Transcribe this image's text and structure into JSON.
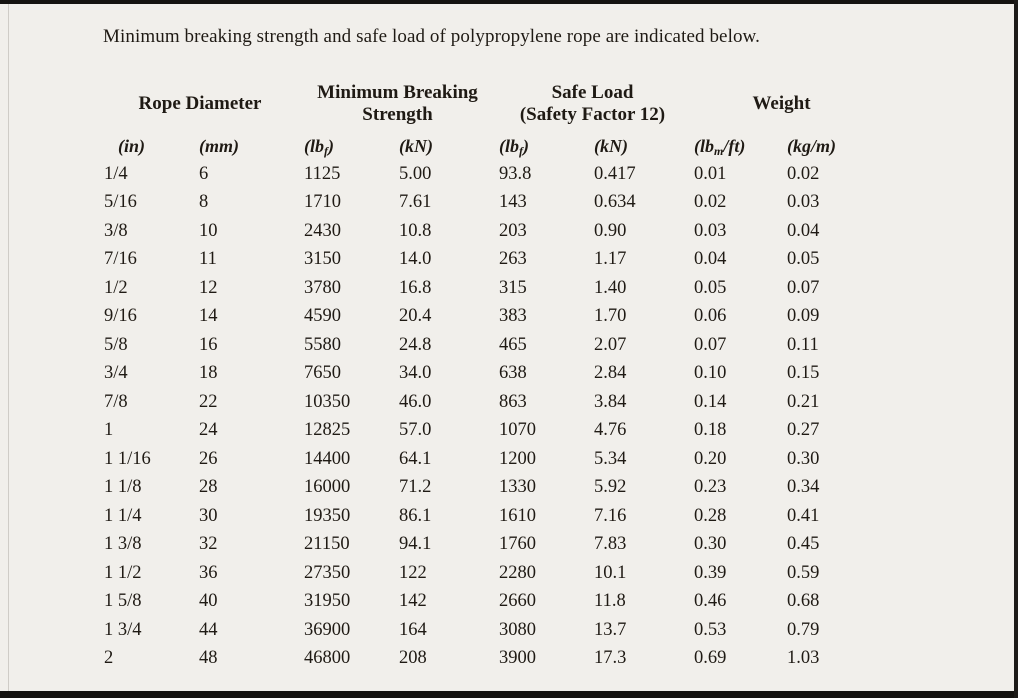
{
  "page": {
    "title": "Minimum breaking strength and safe load of polypropylene rope are indicated below."
  },
  "colors": {
    "background": "#f1efeb",
    "text": "#1f1a14",
    "frame": "#151310",
    "left_edge_line": "#cfccc7"
  },
  "table": {
    "groups": [
      {
        "label": "Rope Diameter"
      },
      {
        "label": "Minimum Breaking\nStrength"
      },
      {
        "label": "Safe Load\n(Safety Factor 12)"
      },
      {
        "label": "Weight"
      }
    ],
    "units": [
      {
        "text": "(in)"
      },
      {
        "text": "(mm)"
      },
      {
        "pre": "(lb",
        "sub": "f",
        "post": ")"
      },
      {
        "text": "(kN)"
      },
      {
        "pre": "(lb",
        "sub": "f",
        "post": ")"
      },
      {
        "text": "(kN)"
      },
      {
        "pre": "(lb",
        "sub": "m",
        "post": "/ft)"
      },
      {
        "text": "(kg/m)"
      }
    ],
    "rows": [
      [
        "1/4",
        "6",
        "1125",
        "5.00",
        "93.8",
        "0.417",
        "0.01",
        "0.02"
      ],
      [
        "5/16",
        "8",
        "1710",
        "7.61",
        "143",
        "0.634",
        "0.02",
        "0.03"
      ],
      [
        "3/8",
        "10",
        "2430",
        "10.8",
        "203",
        "0.90",
        "0.03",
        "0.04"
      ],
      [
        "7/16",
        "11",
        "3150",
        "14.0",
        "263",
        "1.17",
        "0.04",
        "0.05"
      ],
      [
        "1/2",
        "12",
        "3780",
        "16.8",
        "315",
        "1.40",
        "0.05",
        "0.07"
      ],
      [
        "9/16",
        "14",
        "4590",
        "20.4",
        "383",
        "1.70",
        "0.06",
        "0.09"
      ],
      [
        "5/8",
        "16",
        "5580",
        "24.8",
        "465",
        "2.07",
        "0.07",
        "0.11"
      ],
      [
        "3/4",
        "18",
        "7650",
        "34.0",
        "638",
        "2.84",
        "0.10",
        "0.15"
      ],
      [
        "7/8",
        "22",
        "10350",
        "46.0",
        "863",
        "3.84",
        "0.14",
        "0.21"
      ],
      [
        "1",
        "24",
        "12825",
        "57.0",
        "1070",
        "4.76",
        "0.18",
        "0.27"
      ],
      [
        "1 1/16",
        "26",
        "14400",
        "64.1",
        "1200",
        "5.34",
        "0.20",
        "0.30"
      ],
      [
        "1 1/8",
        "28",
        "16000",
        "71.2",
        "1330",
        "5.92",
        "0.23",
        "0.34"
      ],
      [
        "1 1/4",
        "30",
        "19350",
        "86.1",
        "1610",
        "7.16",
        "0.28",
        "0.41"
      ],
      [
        "1 3/8",
        "32",
        "21150",
        "94.1",
        "1760",
        "7.83",
        "0.30",
        "0.45"
      ],
      [
        "1 1/2",
        "36",
        "27350",
        "122",
        "2280",
        "10.1",
        "0.39",
        "0.59"
      ],
      [
        "1 5/8",
        "40",
        "31950",
        "142",
        "2660",
        "11.8",
        "0.46",
        "0.68"
      ],
      [
        "1 3/4",
        "44",
        "36900",
        "164",
        "3080",
        "13.7",
        "0.53",
        "0.79"
      ],
      [
        "2",
        "48",
        "46800",
        "208",
        "3900",
        "17.3",
        "0.69",
        "1.03"
      ]
    ]
  }
}
